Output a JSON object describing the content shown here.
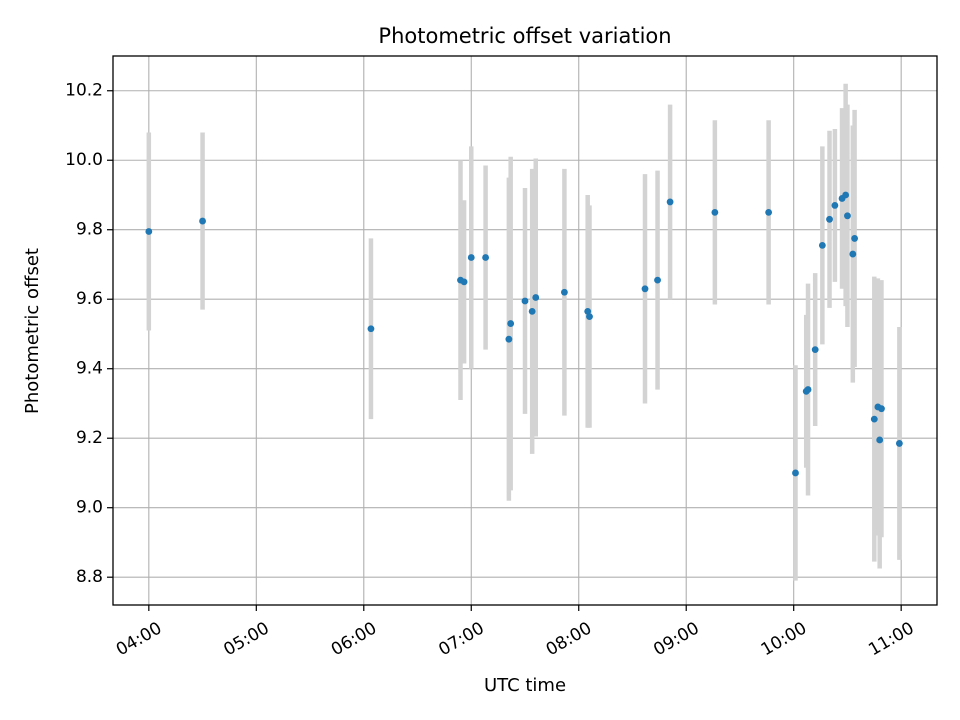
{
  "chart_data": {
    "type": "scatter",
    "title": "Photometric offset variation",
    "xlabel": "UTC time",
    "ylabel": "Photometric offset",
    "x_tick_labels": [
      "04:00",
      "05:00",
      "06:00",
      "07:00",
      "08:00",
      "09:00",
      "10:00",
      "11:00"
    ],
    "y_tick_labels": [
      "8.8",
      "9.0",
      "9.2",
      "9.4",
      "9.6",
      "9.8",
      "10.0",
      "10.2"
    ],
    "xlim": [
      "03:40",
      "11:20"
    ],
    "ylim": [
      8.72,
      10.3
    ],
    "grid": true,
    "error_bars": true,
    "colors": {
      "marker": "#1f77b4",
      "errorbar": "#d3d3d3",
      "grid": "#b0b0b0"
    },
    "points": [
      {
        "x": "04:00",
        "y": 9.795,
        "err": 0.285
      },
      {
        "x": "04:30",
        "y": 9.825,
        "err": 0.255
      },
      {
        "x": "06:04",
        "y": 9.515,
        "err": 0.26
      },
      {
        "x": "06:54",
        "y": 9.655,
        "err": 0.345
      },
      {
        "x": "06:56",
        "y": 9.65,
        "err": 0.235
      },
      {
        "x": "07:00",
        "y": 9.72,
        "err": 0.32
      },
      {
        "x": "07:08",
        "y": 9.72,
        "err": 0.265
      },
      {
        "x": "07:21",
        "y": 9.485,
        "err": 0.465
      },
      {
        "x": "07:22",
        "y": 9.53,
        "err": 0.48
      },
      {
        "x": "07:30",
        "y": 9.595,
        "err": 0.325
      },
      {
        "x": "07:34",
        "y": 9.565,
        "err": 0.41
      },
      {
        "x": "07:36",
        "y": 9.605,
        "err": 0.4
      },
      {
        "x": "07:52",
        "y": 9.62,
        "err": 0.355
      },
      {
        "x": "08:05",
        "y": 9.565,
        "err": 0.335
      },
      {
        "x": "08:06",
        "y": 9.55,
        "err": 0.32
      },
      {
        "x": "08:37",
        "y": 9.63,
        "err": 0.33
      },
      {
        "x": "08:44",
        "y": 9.655,
        "err": 0.315
      },
      {
        "x": "08:51",
        "y": 9.88,
        "err": 0.28
      },
      {
        "x": "09:16",
        "y": 9.85,
        "err": 0.265
      },
      {
        "x": "09:46",
        "y": 9.85,
        "err": 0.265
      },
      {
        "x": "10:01",
        "y": 9.1,
        "err": 0.31
      },
      {
        "x": "10:07",
        "y": 9.335,
        "err": 0.22
      },
      {
        "x": "10:08",
        "y": 9.34,
        "err": 0.305
      },
      {
        "x": "10:12",
        "y": 9.455,
        "err": 0.22
      },
      {
        "x": "10:16",
        "y": 9.755,
        "err": 0.285
      },
      {
        "x": "10:20",
        "y": 9.83,
        "err": 0.255
      },
      {
        "x": "10:23",
        "y": 9.87,
        "err": 0.22
      },
      {
        "x": "10:27",
        "y": 9.89,
        "err": 0.26
      },
      {
        "x": "10:29",
        "y": 9.9,
        "err": 0.32
      },
      {
        "x": "10:30",
        "y": 9.84,
        "err": 0.32
      },
      {
        "x": "10:33",
        "y": 9.73,
        "err": 0.37
      },
      {
        "x": "10:34",
        "y": 9.775,
        "err": 0.37
      },
      {
        "x": "10:45",
        "y": 9.255,
        "err": 0.41
      },
      {
        "x": "10:47",
        "y": 9.29,
        "err": 0.37
      },
      {
        "x": "10:48",
        "y": 9.195,
        "err": 0.37
      },
      {
        "x": "10:49",
        "y": 9.285,
        "err": 0.37
      },
      {
        "x": "10:59",
        "y": 9.185,
        "err": 0.335
      }
    ]
  }
}
